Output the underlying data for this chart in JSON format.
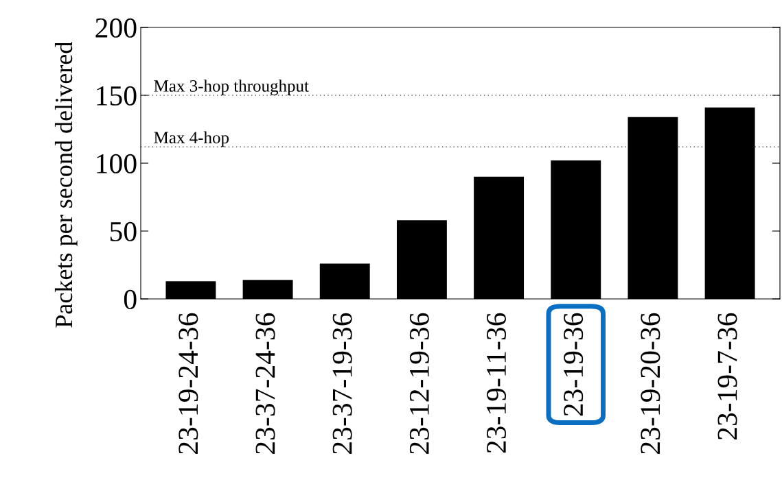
{
  "chart_data": {
    "type": "bar",
    "ylabel": "Packets per second delivered",
    "categories": [
      "23-19-24-36",
      "23-37-24-36",
      "23-37-19-36",
      "23-12-19-36",
      "23-19-11-36",
      "23-19-36",
      "23-19-20-36",
      "23-19-7-36"
    ],
    "values": [
      13,
      14,
      26,
      58,
      90,
      102,
      134,
      141
    ],
    "color": "#000000",
    "ylim": [
      0,
      200
    ],
    "yticks": [
      0,
      50,
      100,
      150,
      200
    ],
    "grid": false,
    "legend": false,
    "ref_lines": [
      {
        "axis": "y",
        "value": 150,
        "label": "Max 3-hop throughput",
        "color": "#555555",
        "line_style": "dotted"
      },
      {
        "axis": "y",
        "value": 112,
        "label": "Max 4-hop",
        "color": "#555555",
        "line_style": "dotted"
      }
    ]
  }
}
